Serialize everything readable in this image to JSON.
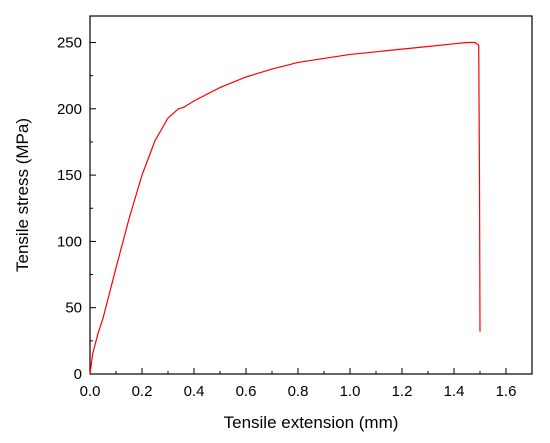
{
  "chart_data": {
    "type": "line",
    "title": "",
    "xlabel": "Tensile extension (mm)",
    "ylabel": "Tensile stress (MPa)",
    "xlim": [
      0,
      1.7
    ],
    "ylim": [
      0,
      270
    ],
    "xticks": [
      0.0,
      0.2,
      0.4,
      0.6,
      0.8,
      1.0,
      1.2,
      1.4,
      1.6
    ],
    "xtick_labels": [
      "0.0",
      "0.2",
      "0.4",
      "0.6",
      "0.8",
      "1.0",
      "1.2",
      "1.4",
      "1.6"
    ],
    "yticks": [
      0,
      50,
      100,
      150,
      200,
      250
    ],
    "ytick_labels": [
      "0",
      "50",
      "100",
      "150",
      "200",
      "250"
    ],
    "grid": false,
    "color": "#ff0000",
    "series": [
      {
        "x": [
          0.0,
          0.01,
          0.03,
          0.05,
          0.1,
          0.15,
          0.2,
          0.25,
          0.3,
          0.34,
          0.36,
          0.4,
          0.5,
          0.6,
          0.7,
          0.8,
          0.9,
          1.0,
          1.1,
          1.2,
          1.3,
          1.4,
          1.45,
          1.48,
          1.495,
          1.498,
          1.5
        ],
        "y": [
          0,
          15,
          30,
          42,
          80,
          117,
          150,
          176,
          193,
          200,
          201,
          206,
          216,
          224,
          230,
          235,
          238,
          241,
          243,
          245,
          247,
          249,
          250,
          250,
          248,
          150,
          32
        ]
      }
    ]
  }
}
